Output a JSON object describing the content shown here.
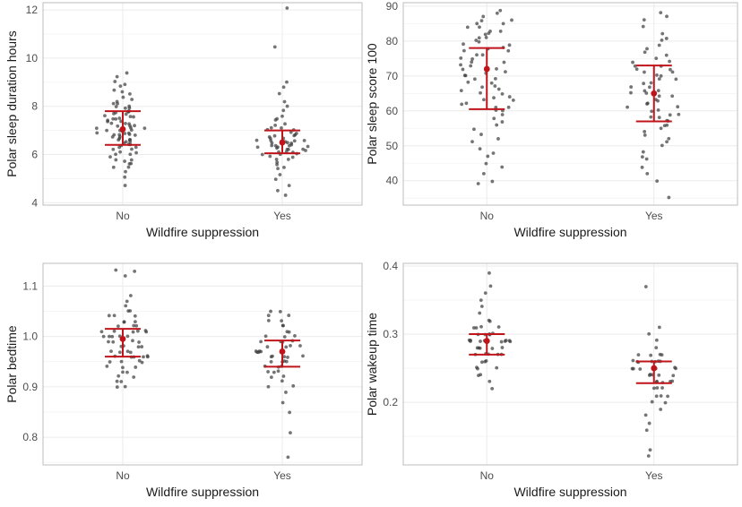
{
  "chart_data": [
    {
      "type": "scatter",
      "id": "duration",
      "xlabel": "Wildfire suppression",
      "ylabel": "Polar sleep duration hours",
      "categories": [
        "No",
        "Yes"
      ],
      "ylim": [
        3.9,
        12.3
      ],
      "yticks": [
        4,
        6,
        8,
        10,
        12
      ],
      "tick_decimals": 0,
      "summary": [
        {
          "group": "No",
          "mean": 7.05,
          "lower": 6.4,
          "upper": 7.8
        },
        {
          "group": "Yes",
          "mean": 6.5,
          "lower": 6.05,
          "upper": 7.0
        }
      ],
      "points": [
        {
          "group": "No",
          "values": [
            4.7,
            5.1,
            5.3,
            5.5,
            5.5,
            5.6,
            5.6,
            5.7,
            5.8,
            5.8,
            5.9,
            6.0,
            6.0,
            6.1,
            6.1,
            6.2,
            6.2,
            6.3,
            6.3,
            6.4,
            6.4,
            6.4,
            6.5,
            6.5,
            6.5,
            6.6,
            6.6,
            6.6,
            6.7,
            6.7,
            6.7,
            6.8,
            6.8,
            6.8,
            6.8,
            6.9,
            6.9,
            6.9,
            7.0,
            7.0,
            7.0,
            7.0,
            7.1,
            7.1,
            7.1,
            7.2,
            7.2,
            7.2,
            7.3,
            7.3,
            7.3,
            7.4,
            7.4,
            7.4,
            7.5,
            7.5,
            7.5,
            7.6,
            7.6,
            7.6,
            7.7,
            7.7,
            7.7,
            7.8,
            7.8,
            7.8,
            7.9,
            7.9,
            8.0,
            8.0,
            8.1,
            8.1,
            8.2,
            8.3,
            8.4,
            8.5,
            8.6,
            8.7,
            8.8,
            8.9,
            9.0,
            9.2,
            9.4
          ]
        },
        {
          "group": "Yes",
          "values": [
            4.3,
            4.5,
            4.7,
            5.0,
            5.2,
            5.4,
            5.5,
            5.6,
            5.7,
            5.8,
            5.8,
            5.9,
            5.9,
            6.0,
            6.0,
            6.0,
            6.1,
            6.1,
            6.1,
            6.2,
            6.2,
            6.2,
            6.2,
            6.3,
            6.3,
            6.3,
            6.3,
            6.4,
            6.4,
            6.4,
            6.4,
            6.5,
            6.5,
            6.5,
            6.5,
            6.6,
            6.6,
            6.6,
            6.6,
            6.7,
            6.7,
            6.7,
            6.8,
            6.8,
            6.8,
            6.9,
            6.9,
            7.0,
            7.0,
            7.1,
            7.1,
            7.2,
            7.3,
            7.4,
            7.5,
            7.6,
            7.8,
            8.0,
            8.2,
            8.5,
            8.8,
            9.0,
            10.5,
            12.1
          ]
        }
      ]
    },
    {
      "type": "scatter",
      "id": "score",
      "xlabel": "Wildfire suppression",
      "ylabel": "Polar sleep score 100",
      "categories": [
        "No",
        "Yes"
      ],
      "ylim": [
        33,
        91
      ],
      "yticks": [
        40,
        50,
        60,
        70,
        80,
        90
      ],
      "tick_decimals": 0,
      "summary": [
        {
          "group": "No",
          "mean": 72,
          "lower": 60.5,
          "upper": 78
        },
        {
          "group": "Yes",
          "mean": 65,
          "lower": 57,
          "upper": 73
        }
      ],
      "points": [
        {
          "group": "No",
          "values": [
            39,
            40,
            42,
            44,
            45,
            47,
            48,
            49,
            51,
            52,
            53,
            55,
            56,
            57,
            58,
            59,
            60,
            60,
            61,
            61,
            62,
            62,
            63,
            63,
            64,
            64,
            65,
            65,
            66,
            66,
            67,
            67,
            68,
            68,
            69,
            69,
            70,
            70,
            71,
            71,
            72,
            72,
            73,
            73,
            74,
            74,
            75,
            75,
            76,
            76,
            77,
            77,
            78,
            78,
            79,
            79,
            80,
            80,
            81,
            81,
            82,
            82,
            83,
            83,
            84,
            84,
            85,
            85,
            86,
            86,
            87,
            88,
            89
          ]
        },
        {
          "group": "Yes",
          "values": [
            35,
            40,
            42,
            44,
            46,
            47,
            48,
            50,
            51,
            52,
            53,
            54,
            55,
            56,
            56,
            57,
            57,
            58,
            58,
            59,
            59,
            60,
            60,
            61,
            61,
            62,
            62,
            63,
            63,
            64,
            64,
            65,
            65,
            66,
            66,
            67,
            67,
            68,
            68,
            69,
            69,
            70,
            70,
            71,
            71,
            72,
            72,
            73,
            73,
            74,
            74,
            75,
            76,
            77,
            78,
            79,
            80,
            81,
            82,
            84,
            86,
            87,
            88
          ]
        }
      ]
    },
    {
      "type": "scatter",
      "id": "bedtime",
      "xlabel": "Wildfire suppression",
      "ylabel": "Polar bedtime",
      "categories": [
        "No",
        "Yes"
      ],
      "ylim": [
        0.745,
        1.145
      ],
      "yticks": [
        0.8,
        0.9,
        1.0,
        1.1
      ],
      "tick_decimals": 1,
      "summary": [
        {
          "group": "No",
          "mean": 0.995,
          "lower": 0.96,
          "upper": 1.015
        },
        {
          "group": "Yes",
          "mean": 0.97,
          "lower": 0.94,
          "upper": 0.992
        }
      ],
      "points": [
        {
          "group": "No",
          "values": [
            0.9,
            0.9,
            0.91,
            0.91,
            0.92,
            0.92,
            0.93,
            0.93,
            0.94,
            0.94,
            0.94,
            0.95,
            0.95,
            0.95,
            0.95,
            0.96,
            0.96,
            0.96,
            0.96,
            0.96,
            0.96,
            0.97,
            0.97,
            0.97,
            0.97,
            0.98,
            0.98,
            0.98,
            0.98,
            0.99,
            0.99,
            0.99,
            0.99,
            1.0,
            1.0,
            1.0,
            1.0,
            1.0,
            1.01,
            1.01,
            1.01,
            1.01,
            1.01,
            1.01,
            1.02,
            1.02,
            1.02,
            1.03,
            1.03,
            1.03,
            1.04,
            1.04,
            1.04,
            1.05,
            1.05,
            1.06,
            1.07,
            1.08,
            1.12,
            1.13,
            1.13
          ]
        },
        {
          "group": "Yes",
          "values": [
            0.76,
            0.81,
            0.85,
            0.87,
            0.89,
            0.9,
            0.9,
            0.91,
            0.92,
            0.92,
            0.93,
            0.93,
            0.93,
            0.94,
            0.94,
            0.94,
            0.95,
            0.95,
            0.95,
            0.95,
            0.96,
            0.96,
            0.96,
            0.96,
            0.96,
            0.97,
            0.97,
            0.97,
            0.97,
            0.97,
            0.98,
            0.98,
            0.98,
            0.98,
            0.99,
            0.99,
            0.99,
            0.99,
            1.0,
            1.0,
            1.0,
            1.01,
            1.01,
            1.02,
            1.02,
            1.03,
            1.03,
            1.04,
            1.04,
            1.05,
            1.05
          ]
        }
      ]
    },
    {
      "type": "scatter",
      "id": "wakeup",
      "xlabel": "Wildfire suppression",
      "ylabel": "Polar wakeup time",
      "categories": [
        "No",
        "Yes"
      ],
      "ylim": [
        0.108,
        0.404
      ],
      "yticks": [
        0.2,
        0.3,
        0.4
      ],
      "tick_decimals": 1,
      "summary": [
        {
          "group": "No",
          "mean": 0.29,
          "lower": 0.27,
          "upper": 0.3
        },
        {
          "group": "Yes",
          "mean": 0.25,
          "lower": 0.228,
          "upper": 0.26
        }
      ],
      "points": [
        {
          "group": "No",
          "values": [
            0.22,
            0.23,
            0.24,
            0.24,
            0.25,
            0.25,
            0.25,
            0.26,
            0.26,
            0.26,
            0.27,
            0.27,
            0.27,
            0.27,
            0.27,
            0.28,
            0.28,
            0.28,
            0.28,
            0.28,
            0.29,
            0.29,
            0.29,
            0.29,
            0.29,
            0.29,
            0.29,
            0.29,
            0.29,
            0.29,
            0.3,
            0.3,
            0.3,
            0.3,
            0.3,
            0.31,
            0.31,
            0.31,
            0.31,
            0.32,
            0.32,
            0.33,
            0.34,
            0.35,
            0.36,
            0.37,
            0.39
          ]
        },
        {
          "group": "Yes",
          "values": [
            0.12,
            0.13,
            0.16,
            0.17,
            0.18,
            0.19,
            0.2,
            0.2,
            0.21,
            0.21,
            0.21,
            0.22,
            0.22,
            0.22,
            0.23,
            0.23,
            0.23,
            0.23,
            0.23,
            0.24,
            0.24,
            0.24,
            0.24,
            0.24,
            0.25,
            0.25,
            0.25,
            0.25,
            0.25,
            0.25,
            0.26,
            0.26,
            0.26,
            0.26,
            0.26,
            0.26,
            0.26,
            0.27,
            0.27,
            0.27,
            0.27,
            0.28,
            0.29,
            0.3,
            0.31,
            0.37
          ]
        }
      ]
    }
  ],
  "colors": {
    "point": "#3a3a3a",
    "summary": "#c0141b",
    "grid": "#ebebeb",
    "frame": "#bdbdbd",
    "text": "#1a1a1a",
    "tick": "#4d4d4d"
  }
}
